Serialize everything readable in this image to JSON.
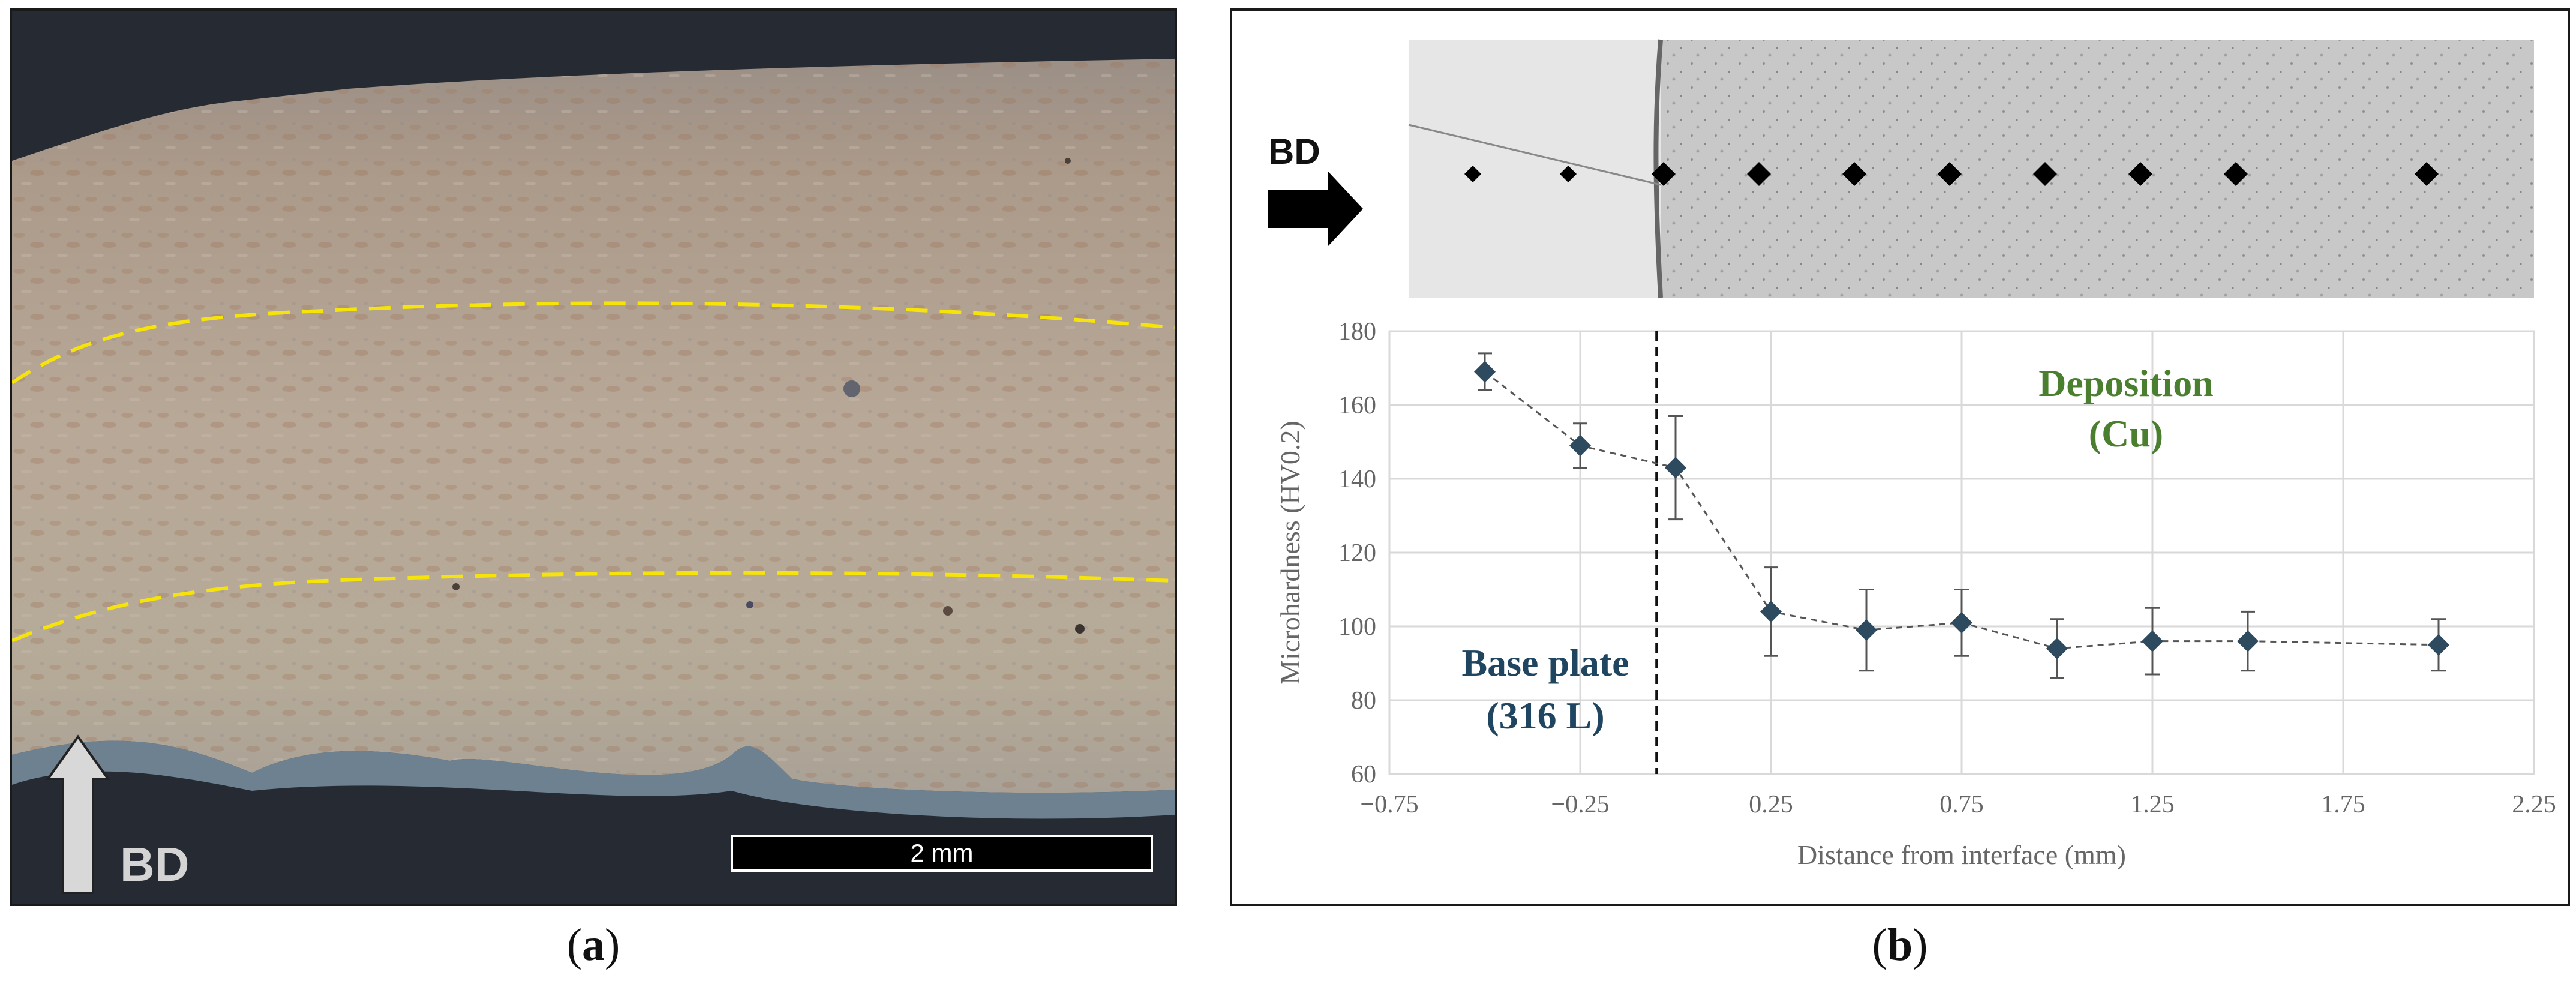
{
  "panel_a": {
    "bd_label": "BD",
    "scale_bar_label": "2 mm",
    "caption": {
      "open": "(",
      "letter": "a",
      "close": ")"
    }
  },
  "panel_b": {
    "bd_label": "BD",
    "annotation_deposition": [
      "Deposition",
      "(Cu)"
    ],
    "annotation_base": [
      "Base plate",
      "(316 L)"
    ],
    "caption": {
      "open": "(",
      "letter": "b",
      "close": ")"
    }
  },
  "colors": {
    "marker": "#2e4a5f",
    "deposition_text": "#4a7f2f",
    "base_text": "#1f4560",
    "dashed_boundary": "#f5e30a",
    "axis_text": "#666666"
  },
  "chart_data": {
    "type": "scatter",
    "xlabel": "Distance from interface (mm)",
    "ylabel": "Microhardness (HV0.2)",
    "xlim": [
      -0.75,
      2.25
    ],
    "ylim": [
      60,
      180
    ],
    "xticks": [
      "−0.75",
      "−0.25",
      "0.25",
      "0.75",
      "1.25",
      "1.75",
      "2.25"
    ],
    "xtick_values": [
      -0.75,
      -0.25,
      0.25,
      0.75,
      1.25,
      1.75,
      2.25
    ],
    "yticks": [
      "60",
      "80",
      "100",
      "120",
      "140",
      "160",
      "180"
    ],
    "ytick_values": [
      60,
      80,
      100,
      120,
      140,
      160,
      180
    ],
    "grid": true,
    "interface_x": -0.05,
    "series": [
      {
        "x": [
          -0.5,
          -0.25,
          0.0,
          0.25,
          0.5,
          0.75,
          1.0,
          1.25,
          1.5,
          2.0
        ],
        "y": [
          169,
          149,
          143,
          104,
          99,
          101,
          94,
          96,
          96,
          95
        ],
        "err": [
          5,
          6,
          14,
          12,
          11,
          9,
          8,
          9,
          8,
          7
        ]
      }
    ]
  }
}
